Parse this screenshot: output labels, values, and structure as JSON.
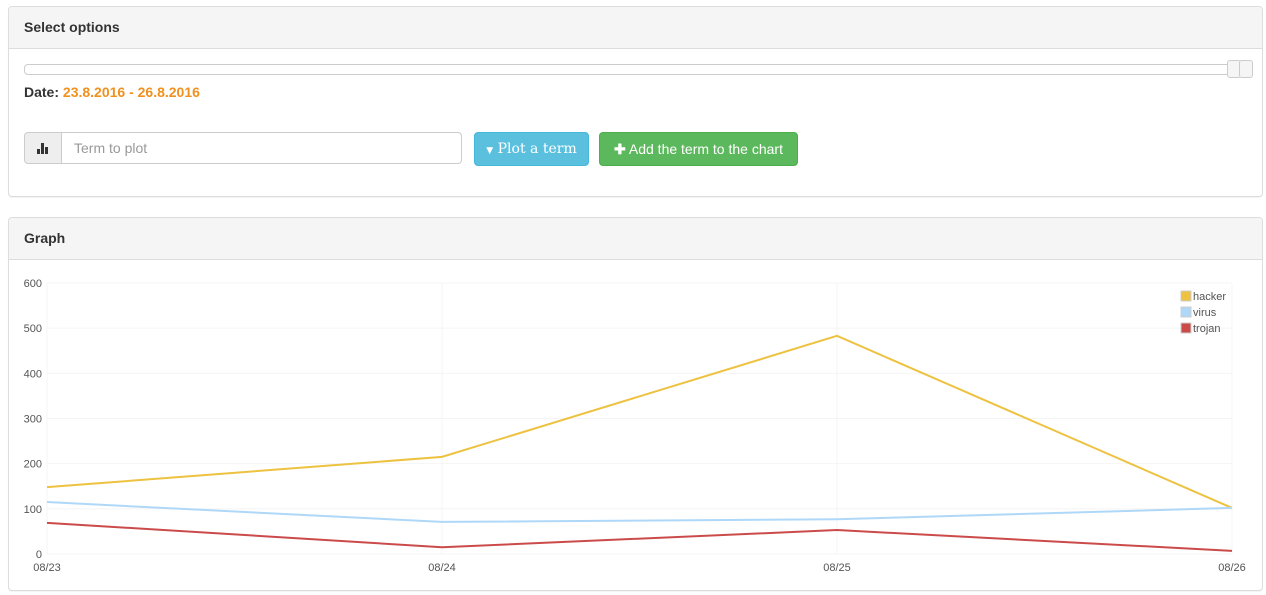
{
  "options_panel": {
    "title": "Select options",
    "date_label": "Date:",
    "date_range": "23.8.2016 - 26.8.2016",
    "slider_value": 1.0,
    "term_input": {
      "placeholder": "Term to plot",
      "value": "",
      "icon": "bar-chart-icon"
    },
    "plot_button": {
      "label": "Plot a term",
      "icon": "caret-down-icon"
    },
    "add_button": {
      "label": "Add the term to the chart",
      "icon": "plus-icon"
    }
  },
  "graph_panel": {
    "title": "Graph"
  },
  "chart_data": {
    "type": "line",
    "categories": [
      "08/23",
      "08/24",
      "08/25",
      "08/26"
    ],
    "ylim": [
      0,
      600
    ],
    "yticks": [
      "0",
      "100",
      "200",
      "300",
      "400",
      "500",
      "600"
    ],
    "grid": true,
    "legend": "top-right",
    "series": [
      {
        "name": "hacker",
        "color": "#edc240",
        "values": [
          148,
          215,
          483,
          102
        ]
      },
      {
        "name": "virus",
        "color": "#afd8f8",
        "values": [
          115,
          71,
          77,
          102
        ]
      },
      {
        "name": "trojan",
        "color": "#cb4b4b",
        "values": [
          69,
          15,
          53,
          7
        ]
      }
    ]
  }
}
